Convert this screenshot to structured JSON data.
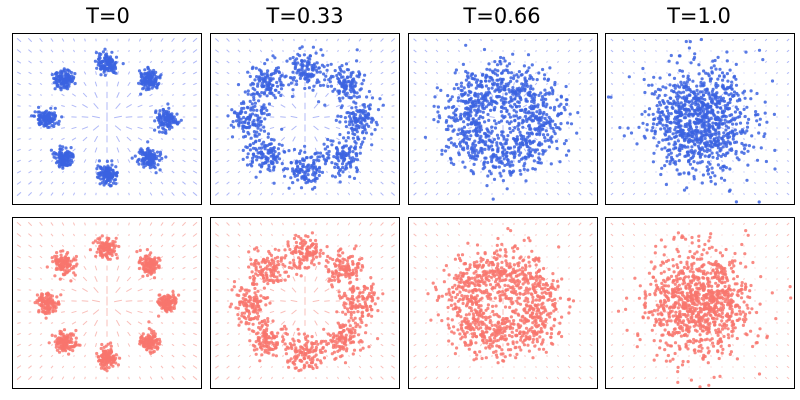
{
  "titles": [
    "T=0",
    "T=0.33",
    "T=0.66",
    "T=1.0"
  ],
  "colors": {
    "top_points": "#3b63e0",
    "top_arrows": "#6f7ff0",
    "bottom_points": "#f8766d",
    "bottom_arrows": "#f48a82"
  },
  "chart_data": [
    {
      "type": "scatter",
      "row": "top",
      "title": "T=0",
      "t": 0,
      "source": "8 gaussian clusters on a circle",
      "clusters": 8,
      "points_per_cluster": 120,
      "overlay": "vector field (arrows)",
      "grid": false
    },
    {
      "type": "scatter",
      "row": "top",
      "title": "T=0.33",
      "t": 0.33,
      "clusters": 8,
      "points_per_cluster": 120,
      "overlay": "vector field (arrows)",
      "grid": false
    },
    {
      "type": "scatter",
      "row": "top",
      "title": "T=0.66",
      "t": 0.66,
      "clusters": 8,
      "points_per_cluster": 120,
      "overlay": "vector field (arrows)",
      "grid": false
    },
    {
      "type": "scatter",
      "row": "top",
      "title": "T=1.0",
      "t": 1.0,
      "target": "single gaussian blob",
      "points": 960,
      "overlay": "vector field (arrows)",
      "grid": false
    },
    {
      "type": "scatter",
      "row": "bottom",
      "title": "",
      "t": 0,
      "clusters": 8,
      "points_per_cluster": 120,
      "overlay": "vector field (arrows)",
      "grid": false
    },
    {
      "type": "scatter",
      "row": "bottom",
      "title": "",
      "t": 0.33,
      "clusters": 8,
      "points_per_cluster": 120,
      "overlay": "vector field (arrows)",
      "grid": false
    },
    {
      "type": "scatter",
      "row": "bottom",
      "title": "",
      "t": 0.66,
      "clusters": 8,
      "points_per_cluster": 120,
      "overlay": "vector field (arrows)",
      "grid": false
    },
    {
      "type": "scatter",
      "row": "bottom",
      "title": "",
      "t": 1.0,
      "points": 960,
      "overlay": "vector field (arrows)",
      "grid": false
    }
  ]
}
